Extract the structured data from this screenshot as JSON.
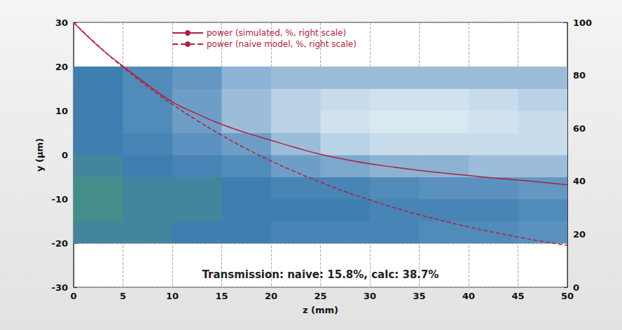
{
  "chart_data": {
    "type": "line",
    "xlabel": "z (mm)",
    "ylabel": "y (µm)",
    "annotation": "Transmission: naive: 15.8%, calc: 38.7%",
    "xlim": [
      0,
      50
    ],
    "xticks": [
      0,
      5,
      10,
      15,
      20,
      25,
      30,
      35,
      40,
      45,
      50
    ],
    "ylim": [
      -30,
      30
    ],
    "yticks": [
      -30,
      -20,
      -10,
      0,
      10,
      20,
      30
    ],
    "y2lim": [
      0,
      100
    ],
    "y2ticks": [
      0,
      20,
      40,
      60,
      80,
      100
    ],
    "grid": true,
    "legend": "top",
    "series": [
      {
        "name": "power (simulated, %, right scale)",
        "color": "#b0203c",
        "line_style": "solid",
        "axis": "y2",
        "x": [
          0,
          2.5,
          5,
          7.5,
          10,
          12.5,
          15,
          17.5,
          20,
          22.5,
          25,
          27.5,
          30,
          32.5,
          35,
          37.5,
          40,
          42.5,
          45,
          47.5,
          50
        ],
        "values": [
          100,
          91,
          83.5,
          76.5,
          70,
          65.5,
          61.5,
          58.3,
          55.5,
          52.7,
          50.2,
          48.3,
          46.6,
          45.3,
          44.1,
          43.1,
          42.2,
          41.3,
          40.5,
          39.6,
          38.7
        ]
      },
      {
        "name": "power (naive model, %, right scale)",
        "color": "#b0203c",
        "line_style": "dashed",
        "axis": "y2",
        "x": [
          0,
          2.5,
          5,
          7.5,
          10,
          12.5,
          15,
          17.5,
          20,
          22.5,
          25,
          27.5,
          30,
          32.5,
          35,
          37.5,
          40,
          42.5,
          45,
          47.5,
          50
        ],
        "values": [
          100,
          91.2,
          83.1,
          75.8,
          69.1,
          63.0,
          57.4,
          52.3,
          47.7,
          43.5,
          39.7,
          36.1,
          33.0,
          30.0,
          27.4,
          25.0,
          22.8,
          20.8,
          19.0,
          17.3,
          15.8
        ]
      }
    ],
    "field": {
      "z": [
        0,
        5,
        10,
        15,
        20,
        25,
        30,
        35,
        40,
        45,
        50
      ],
      "y": [
        -20,
        -15,
        -10,
        -5,
        0,
        5,
        10,
        15,
        20
      ],
      "range": [
        0,
        1
      ],
      "values": [
        [
          0.9,
          0.9,
          0.85,
          0.85,
          0.8,
          0.8,
          0.8,
          0.75,
          0.75,
          0.7
        ],
        [
          0.95,
          0.9,
          0.9,
          0.85,
          0.85,
          0.85,
          0.8,
          0.8,
          0.8,
          0.75
        ],
        [
          0.95,
          0.9,
          0.9,
          0.85,
          0.8,
          0.8,
          0.75,
          0.7,
          0.7,
          0.65
        ],
        [
          0.9,
          0.85,
          0.8,
          0.75,
          0.6,
          0.55,
          0.5,
          0.5,
          0.45,
          0.45
        ],
        [
          0.85,
          0.8,
          0.7,
          0.6,
          0.45,
          0.35,
          0.3,
          0.3,
          0.3,
          0.3
        ],
        [
          0.85,
          0.75,
          0.6,
          0.45,
          0.35,
          0.25,
          0.2,
          0.2,
          0.25,
          0.3
        ],
        [
          0.85,
          0.75,
          0.6,
          0.45,
          0.35,
          0.3,
          0.25,
          0.25,
          0.3,
          0.35
        ],
        [
          0.85,
          0.75,
          0.65,
          0.5,
          0.45,
          0.45,
          0.45,
          0.45,
          0.45,
          0.45
        ]
      ]
    }
  }
}
